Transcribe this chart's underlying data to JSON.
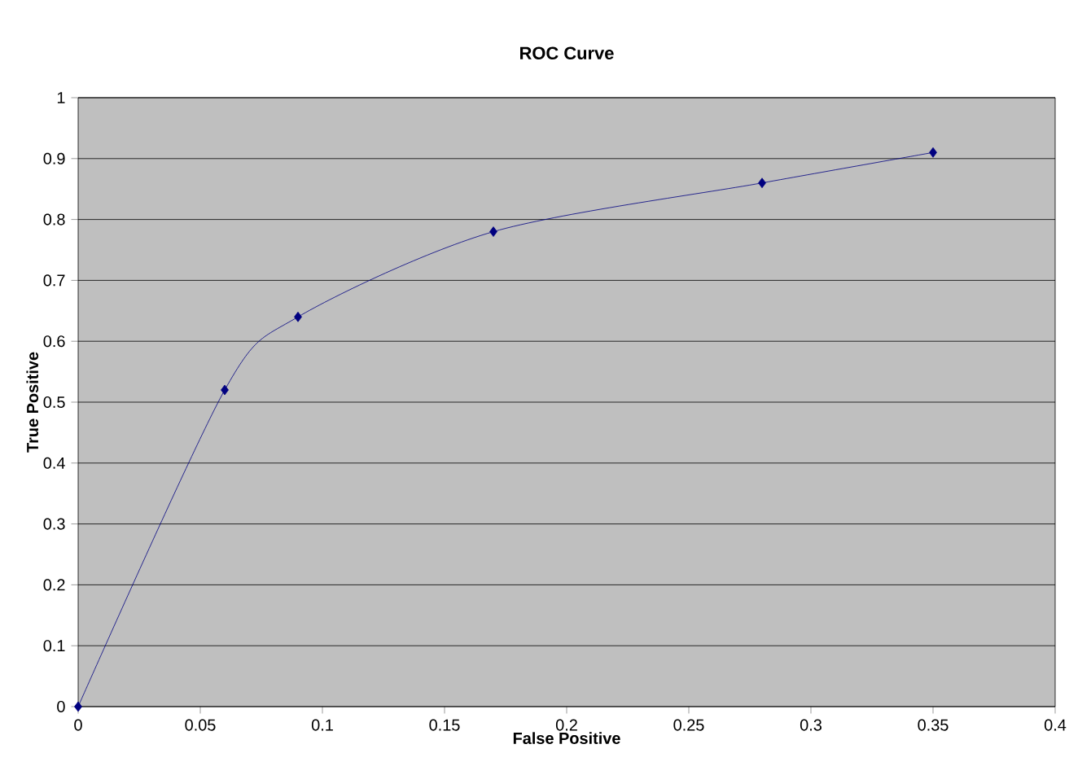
{
  "chart_data": {
    "type": "line",
    "title": "ROC Curve",
    "xlabel": "False Positive",
    "ylabel": "True Positive",
    "x": [
      0,
      0.06,
      0.09,
      0.17,
      0.28,
      0.35
    ],
    "series": [
      {
        "color": "#000080",
        "values": [
          0,
          0.52,
          0.64,
          0.78,
          0.86,
          0.91
        ]
      }
    ],
    "xlim": [
      0,
      0.4
    ],
    "xticks": [
      0,
      0.05,
      0.1,
      0.15,
      0.2,
      0.25,
      0.3,
      0.35,
      0.4
    ],
    "ylim": [
      0,
      1
    ],
    "yticks": [
      0,
      0.1,
      0.2,
      0.3,
      0.4,
      0.5,
      0.6,
      0.7,
      0.8,
      0.9,
      1
    ],
    "grid": "y",
    "marker": "diamond",
    "line_style": "solid"
  }
}
